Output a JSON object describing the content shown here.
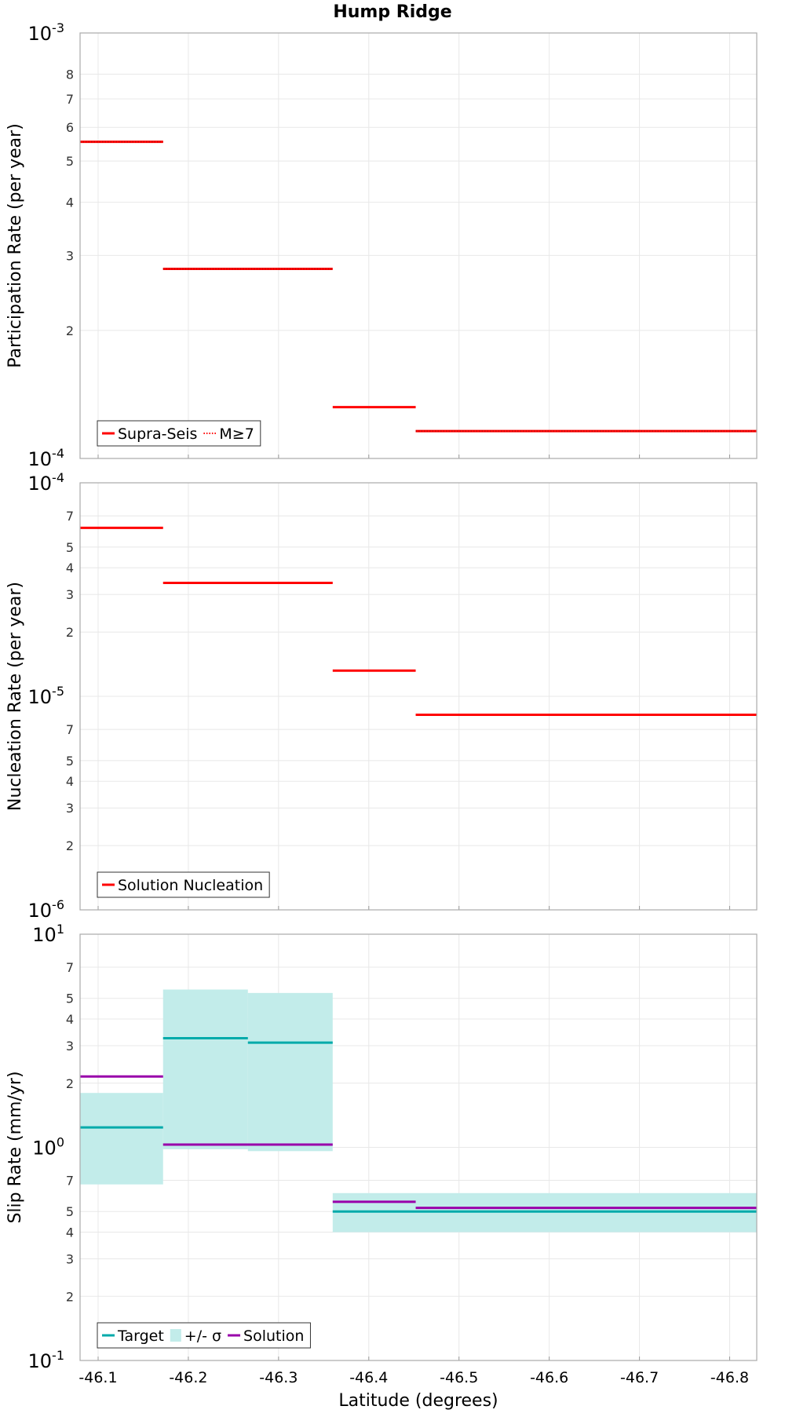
{
  "title": "Hump Ridge",
  "xlabel": "Latitude (degrees)",
  "x_axis": {
    "range": [
      -46.08,
      -46.83
    ],
    "ticks": [
      -46.1,
      -46.2,
      -46.3,
      -46.4,
      -46.5,
      -46.6,
      -46.7,
      -46.8
    ],
    "tick_labels": [
      "-46.1",
      "-46.2",
      "-46.3",
      "-46.4",
      "-46.5",
      "-46.6",
      "-46.7",
      "-46.8"
    ]
  },
  "colors": {
    "red": "#ff0000",
    "target": "#00aaaa",
    "sigma": "#c2ecea",
    "solution": "#9900aa",
    "grid": "#e8e8e8"
  },
  "chart_data": [
    {
      "type": "line",
      "name": "participation",
      "ylabel": "Participation Rate (per year)",
      "yscale": "log",
      "ylim": [
        0.0001,
        0.001
      ],
      "major_labels": [
        {
          "v": 0.001,
          "b": "10",
          "e": "-3"
        },
        {
          "v": 0.0001,
          "b": "10",
          "e": "-4"
        }
      ],
      "minor_ticks": [
        {
          "v": 0.0008,
          "t": "8"
        },
        {
          "v": 0.0007,
          "t": "7"
        },
        {
          "v": 0.0006,
          "t": "6"
        },
        {
          "v": 0.0005,
          "t": "5"
        },
        {
          "v": 0.0004,
          "t": "4"
        },
        {
          "v": 0.0003,
          "t": "3"
        },
        {
          "v": 0.0002,
          "t": "2"
        }
      ],
      "series": [
        {
          "name": "Supra-Seis",
          "style": "solid",
          "color": "#ff0000",
          "segments": [
            [
              -46.08,
              -46.172,
              0.000555
            ],
            [
              -46.172,
              -46.36,
              0.000279
            ],
            [
              -46.36,
              -46.452,
              0.000132
            ],
            [
              -46.452,
              -46.83,
              0.000116
            ]
          ]
        },
        {
          "name": "M≥7",
          "style": "dotted",
          "color": "#ff0000",
          "segments": [
            [
              -46.08,
              -46.172,
              0.000555
            ],
            [
              -46.172,
              -46.36,
              0.000279
            ],
            [
              -46.452,
              -46.83,
              0.000116
            ]
          ]
        }
      ],
      "legend": {
        "position": "bottom-left",
        "entries": [
          {
            "label": "Supra-Seis",
            "kind": "solid",
            "color": "#ff0000"
          },
          {
            "label": "M≥7",
            "kind": "dotted",
            "color": "#ff0000"
          }
        ]
      }
    },
    {
      "type": "line",
      "name": "nucleation",
      "ylabel": "Nucleation Rate (per year)",
      "yscale": "log",
      "ylim": [
        1e-06,
        0.0001
      ],
      "major_labels": [
        {
          "v": 0.0001,
          "b": "10",
          "e": "-4"
        },
        {
          "v": 1e-05,
          "b": "10",
          "e": "-5"
        },
        {
          "v": 1e-06,
          "b": "10",
          "e": "-6"
        }
      ],
      "minor_ticks": [
        {
          "v": 7e-05,
          "t": "7"
        },
        {
          "v": 5e-05,
          "t": "5"
        },
        {
          "v": 4e-05,
          "t": "4"
        },
        {
          "v": 3e-05,
          "t": "3"
        },
        {
          "v": 2e-05,
          "t": "2"
        },
        {
          "v": 7e-06,
          "t": "7"
        },
        {
          "v": 5e-06,
          "t": "5"
        },
        {
          "v": 4e-06,
          "t": "4"
        },
        {
          "v": 3e-06,
          "t": "3"
        },
        {
          "v": 2e-06,
          "t": "2"
        }
      ],
      "series": [
        {
          "name": "Solution Nucleation",
          "style": "solid",
          "color": "#ff0000",
          "segments": [
            [
              -46.08,
              -46.172,
              6.15e-05
            ],
            [
              -46.172,
              -46.36,
              3.4e-05
            ],
            [
              -46.36,
              -46.452,
              1.32e-05
            ],
            [
              -46.452,
              -46.83,
              8.2e-06
            ]
          ]
        }
      ],
      "legend": {
        "position": "bottom-left",
        "entries": [
          {
            "label": "Solution Nucleation",
            "kind": "solid",
            "color": "#ff0000"
          }
        ]
      }
    },
    {
      "type": "line",
      "name": "slip",
      "ylabel": "Slip Rate (mm/yr)",
      "yscale": "log",
      "ylim": [
        0.1,
        10
      ],
      "major_labels": [
        {
          "v": 10,
          "b": "10",
          "e": "1"
        },
        {
          "v": 1,
          "b": "10",
          "e": "0"
        },
        {
          "v": 0.1,
          "b": "10",
          "e": "-1"
        }
      ],
      "minor_ticks": [
        {
          "v": 7,
          "t": "7"
        },
        {
          "v": 5,
          "t": "5"
        },
        {
          "v": 4,
          "t": "4"
        },
        {
          "v": 3,
          "t": "3"
        },
        {
          "v": 2,
          "t": "2"
        },
        {
          "v": 0.7,
          "t": "7"
        },
        {
          "v": 0.5,
          "t": "5"
        },
        {
          "v": 0.4,
          "t": "4"
        },
        {
          "v": 0.3,
          "t": "3"
        },
        {
          "v": 0.2,
          "t": "2"
        }
      ],
      "bands": [
        {
          "x0": -46.08,
          "x1": -46.172,
          "lo": 0.67,
          "hi": 1.8
        },
        {
          "x0": -46.172,
          "x1": -46.266,
          "lo": 0.98,
          "hi": 5.5
        },
        {
          "x0": -46.266,
          "x1": -46.36,
          "lo": 0.96,
          "hi": 5.3
        },
        {
          "x0": -46.36,
          "x1": -46.83,
          "lo": 0.4,
          "hi": 0.61
        }
      ],
      "series": [
        {
          "name": "Target",
          "style": "solid",
          "color": "#00aaaa",
          "segments": [
            [
              -46.08,
              -46.172,
              1.24
            ],
            [
              -46.172,
              -46.266,
              3.25
            ],
            [
              -46.266,
              -46.36,
              3.1
            ],
            [
              -46.36,
              -46.83,
              0.5
            ]
          ]
        },
        {
          "name": "Solution",
          "style": "solid",
          "color": "#9900aa",
          "segments": [
            [
              -46.08,
              -46.172,
              2.15
            ],
            [
              -46.172,
              -46.36,
              1.03
            ],
            [
              -46.36,
              -46.452,
              0.555
            ],
            [
              -46.452,
              -46.83,
              0.52
            ]
          ]
        }
      ],
      "legend": {
        "position": "bottom-left",
        "entries": [
          {
            "label": "Target",
            "kind": "solid",
            "color": "#00aaaa"
          },
          {
            "label": "+/- σ",
            "kind": "patch",
            "color": "#c2ecea"
          },
          {
            "label": "Solution",
            "kind": "solid",
            "color": "#9900aa"
          }
        ]
      }
    }
  ]
}
